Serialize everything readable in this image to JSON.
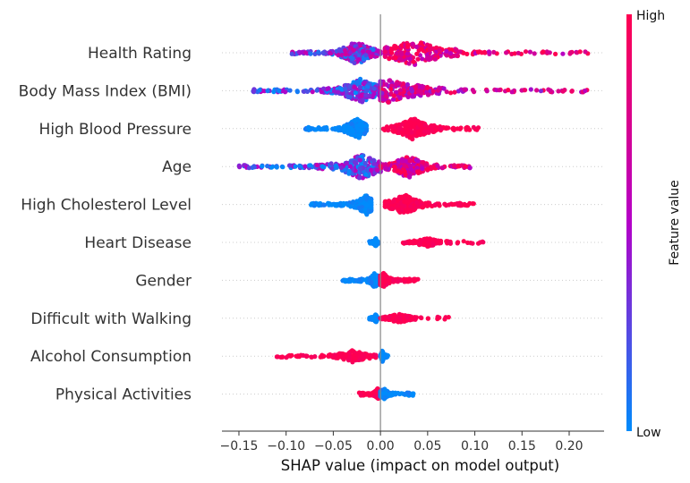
{
  "chart_data": {
    "type": "scatter",
    "subtype": "shap-beeswarm",
    "xlabel": "SHAP value (impact on model output)",
    "xlim": [
      -0.168,
      0.237
    ],
    "xticks": [
      -0.15,
      -0.1,
      -0.05,
      0.0,
      0.05,
      0.1,
      0.15,
      0.2
    ],
    "xtick_labels": [
      "−0.15",
      "−0.10",
      "−0.05",
      "0.00",
      "0.05",
      "0.10",
      "0.15",
      "0.20"
    ],
    "colorbar": {
      "title": "Feature value",
      "high_label": "High",
      "low_label": "Low",
      "low_color": "#008bfb",
      "mid_color": "#b400c8",
      "high_color": "#ff0051"
    },
    "features": [
      {
        "name": "Health Rating",
        "neg": [
          -0.095,
          0.0
        ],
        "pos": [
          0.005,
          0.22
        ],
        "neg_val": 0.4,
        "pos_val": 0.85,
        "peak_neg": -0.025,
        "peak_pos": 0.035,
        "density": 1.0
      },
      {
        "name": "Body Mass Index (BMI)",
        "neg": [
          -0.135,
          0.0
        ],
        "pos": [
          0.0,
          0.22
        ],
        "neg_val": 0.25,
        "pos_val": 0.7,
        "peak_neg": -0.02,
        "peak_pos": 0.01,
        "density": 1.0
      },
      {
        "name": "High Blood Pressure",
        "neg": [
          -0.08,
          -0.015
        ],
        "pos": [
          0.003,
          0.105
        ],
        "neg_val": 0.0,
        "pos_val": 1.0,
        "peak_neg": -0.025,
        "peak_pos": 0.035,
        "density": 0.9
      },
      {
        "name": "Age",
        "neg": [
          -0.15,
          0.0
        ],
        "pos": [
          0.0,
          0.095
        ],
        "neg_val": 0.25,
        "pos_val": 0.8,
        "peak_neg": -0.02,
        "peak_pos": 0.03,
        "density": 1.0
      },
      {
        "name": "High Cholesterol Level",
        "neg": [
          -0.075,
          -0.01
        ],
        "pos": [
          0.005,
          0.1
        ],
        "neg_val": 0.0,
        "pos_val": 1.0,
        "peak_neg": -0.015,
        "peak_pos": 0.025,
        "density": 0.85
      },
      {
        "name": "Heart Disease",
        "neg": [
          -0.012,
          -0.002
        ],
        "pos": [
          0.02,
          0.11
        ],
        "neg_val": 0.0,
        "pos_val": 1.0,
        "peak_neg": -0.005,
        "peak_pos": 0.05,
        "density": 0.35
      },
      {
        "name": "Gender",
        "neg": [
          -0.04,
          -0.003
        ],
        "pos": [
          0.0,
          0.04
        ],
        "neg_val": 0.0,
        "pos_val": 1.0,
        "peak_neg": -0.006,
        "peak_pos": 0.003,
        "density": 0.6
      },
      {
        "name": "Difficult with Walking",
        "neg": [
          -0.012,
          -0.003
        ],
        "pos": [
          0.0,
          0.073
        ],
        "neg_val": 0.0,
        "pos_val": 1.0,
        "peak_neg": -0.005,
        "peak_pos": 0.02,
        "density": 0.4
      },
      {
        "name": "Alcohol Consumption",
        "neg": [
          -0.11,
          -0.005
        ],
        "pos": [
          0.0,
          0.008
        ],
        "neg_val": 1.0,
        "pos_val": 0.0,
        "peak_neg": -0.03,
        "peak_pos": 0.002,
        "density": 0.5
      },
      {
        "name": "Physical Activities",
        "neg": [
          -0.023,
          0.0
        ],
        "pos": [
          0.0,
          0.035
        ],
        "neg_val": 1.0,
        "pos_val": 0.0,
        "peak_neg": -0.003,
        "peak_pos": 0.004,
        "density": 0.45
      }
    ]
  }
}
